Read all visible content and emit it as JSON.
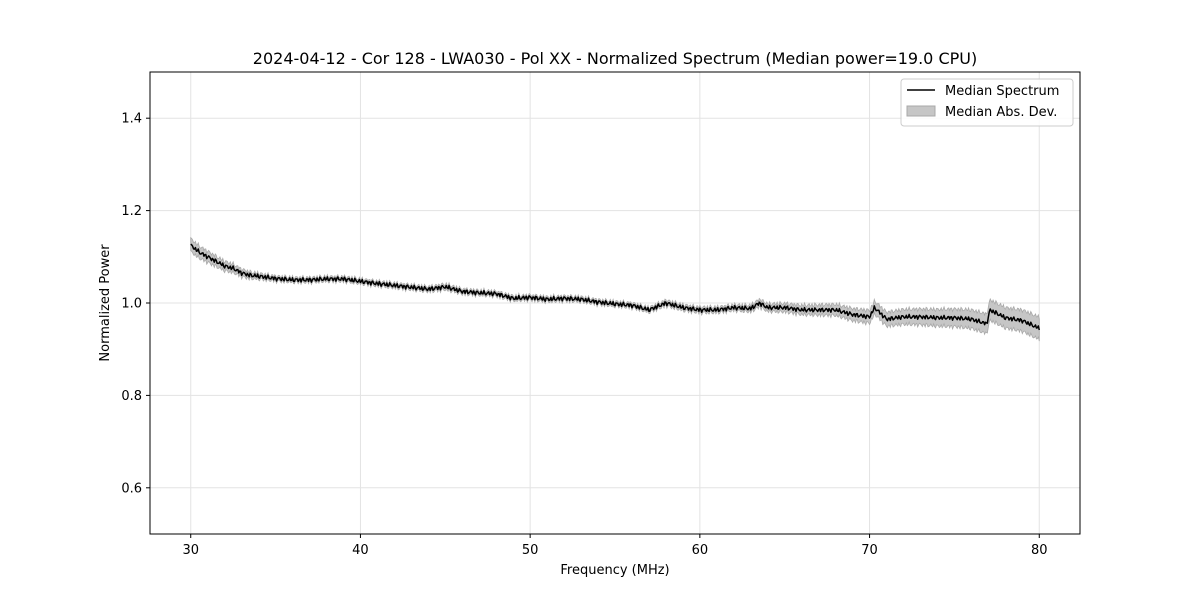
{
  "chart_data": {
    "type": "line",
    "title": "2024-04-12 - Cor 128 - LWA030 - Pol XX - Normalized Spectrum (Median power=19.0 CPU)",
    "xlabel": "Frequency (MHz)",
    "ylabel": "Normalized Power",
    "xlim": [
      27.6,
      82.4
    ],
    "ylim": [
      0.5,
      1.5
    ],
    "xticks": [
      30,
      40,
      50,
      60,
      70,
      80
    ],
    "yticks": [
      0.6,
      0.8,
      1.0,
      1.2,
      1.4
    ],
    "xtick_labels": [
      "30",
      "40",
      "50",
      "60",
      "70",
      "80"
    ],
    "ytick_labels": [
      "0.6",
      "0.8",
      "1.0",
      "1.2",
      "1.4"
    ],
    "grid": true,
    "legend_position": "top-right",
    "legend": {
      "line_label": "Median Spectrum",
      "band_label": "Median Abs. Dev."
    },
    "colors": {
      "line": "#000000",
      "band_fill": "#c6c6c6",
      "band_edge": "#a8a8a8",
      "grid": "#e3e3e3"
    },
    "series": [
      {
        "name": "Median Spectrum",
        "x": [
          30,
          30.5,
          31,
          31.5,
          32,
          32.5,
          33,
          33.5,
          34,
          35,
          36,
          37,
          38,
          39,
          40,
          41,
          42,
          43,
          44,
          45,
          46,
          47,
          48,
          49,
          50,
          51,
          52,
          53,
          54,
          55,
          56,
          57,
          58,
          59,
          60,
          61,
          62,
          63,
          63.5,
          64,
          65,
          66,
          67,
          68,
          69,
          70,
          70.3,
          71,
          72,
          73,
          74,
          75,
          76,
          76.9,
          77.1,
          78,
          79,
          80
        ],
        "y": [
          1.125,
          1.11,
          1.1,
          1.09,
          1.08,
          1.075,
          1.065,
          1.06,
          1.058,
          1.053,
          1.05,
          1.05,
          1.052,
          1.052,
          1.047,
          1.042,
          1.038,
          1.034,
          1.03,
          1.035,
          1.025,
          1.022,
          1.02,
          1.01,
          1.012,
          1.008,
          1.01,
          1.008,
          1.002,
          0.998,
          0.995,
          0.985,
          1.0,
          0.99,
          0.985,
          0.985,
          0.99,
          0.988,
          1.0,
          0.99,
          0.99,
          0.985,
          0.985,
          0.985,
          0.975,
          0.97,
          0.99,
          0.965,
          0.97,
          0.97,
          0.968,
          0.968,
          0.965,
          0.955,
          0.985,
          0.968,
          0.962,
          0.945
        ]
      }
    ],
    "band": {
      "name": "Median Abs. Dev.",
      "halfwidth": [
        0.014,
        0.013,
        0.012,
        0.011,
        0.01,
        0.009,
        0.008,
        0.007,
        0.006,
        0.005,
        0.005,
        0.005,
        0.005,
        0.005,
        0.005,
        0.005,
        0.005,
        0.005,
        0.005,
        0.006,
        0.005,
        0.005,
        0.005,
        0.005,
        0.005,
        0.005,
        0.005,
        0.005,
        0.005,
        0.005,
        0.005,
        0.005,
        0.006,
        0.006,
        0.006,
        0.006,
        0.006,
        0.007,
        0.008,
        0.008,
        0.009,
        0.01,
        0.011,
        0.012,
        0.013,
        0.014,
        0.014,
        0.015,
        0.016,
        0.017,
        0.018,
        0.019,
        0.02,
        0.021,
        0.022,
        0.022,
        0.023,
        0.024
      ]
    }
  }
}
